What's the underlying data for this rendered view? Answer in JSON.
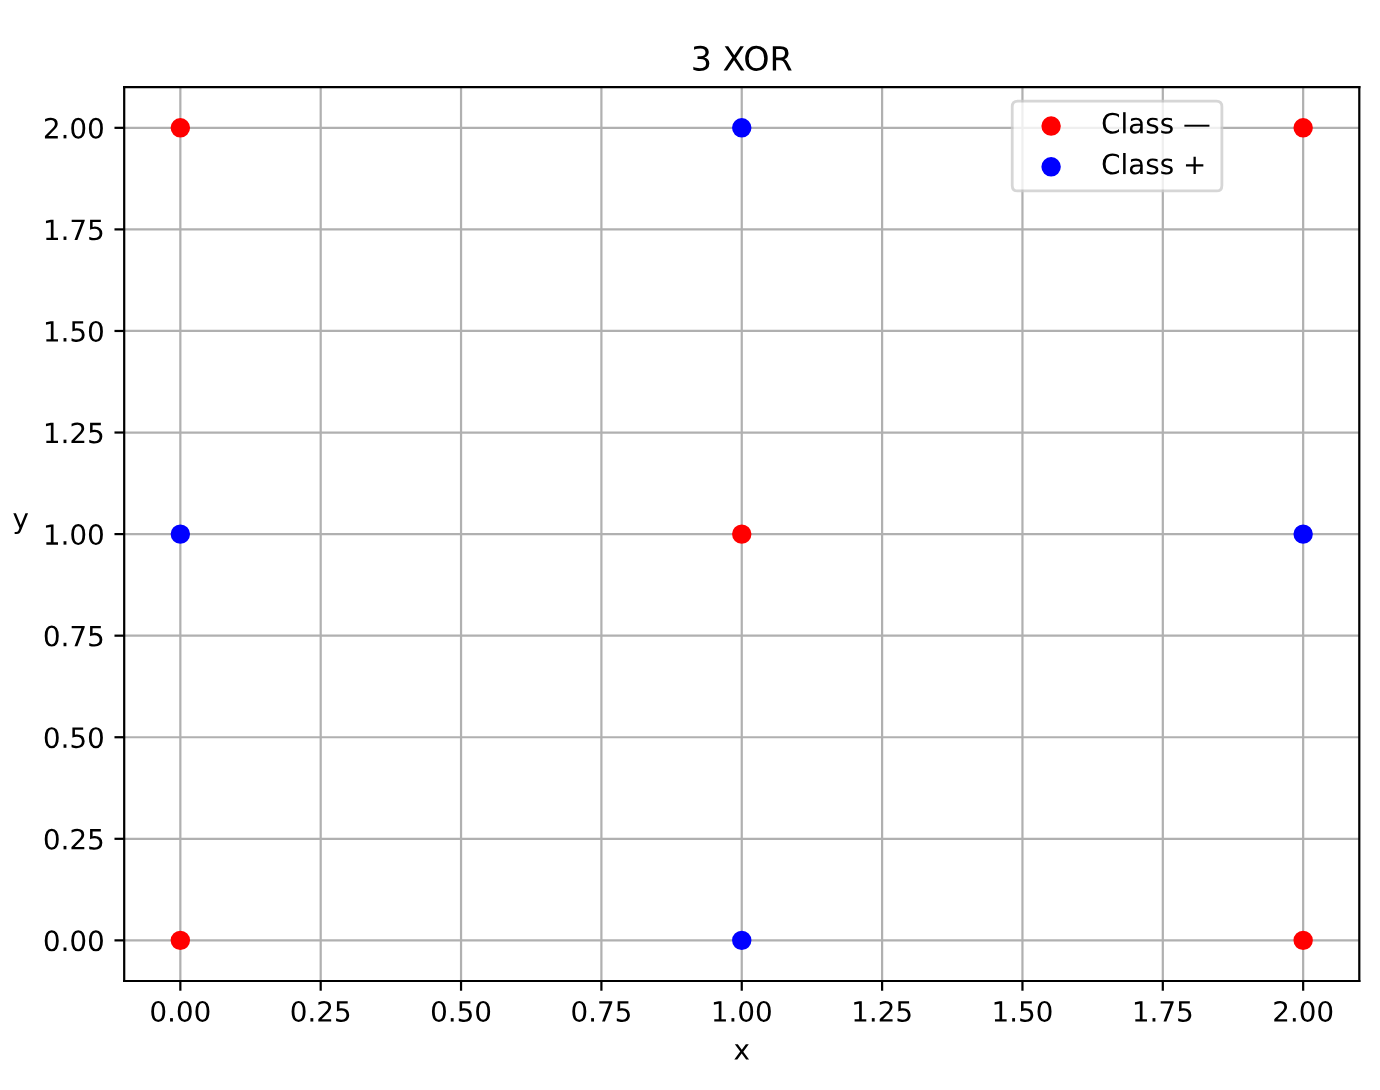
{
  "chart_data": {
    "type": "scatter",
    "title": "3 XOR",
    "xlabel": "x",
    "ylabel": "y",
    "series": [
      {
        "name": "Class —",
        "color": "#ff0000",
        "x": [
          0,
          0,
          1,
          2,
          2
        ],
        "values": [
          0,
          2,
          1,
          0,
          2
        ]
      },
      {
        "name": "Class +",
        "color": "#0000ff",
        "x": [
          0,
          1,
          1,
          2
        ],
        "values": [
          1,
          0,
          2,
          1
        ]
      }
    ],
    "xlim": [
      -0.1,
      2.1
    ],
    "ylim": [
      -0.1,
      2.1
    ],
    "xticks": [
      {
        "value": 0,
        "label": "0.00"
      },
      {
        "value": 0.25,
        "label": "0.25"
      },
      {
        "value": 0.5,
        "label": "0.50"
      },
      {
        "value": 0.75,
        "label": "0.75"
      },
      {
        "value": 1,
        "label": "1.00"
      },
      {
        "value": 1.25,
        "label": "1.25"
      },
      {
        "value": 1.5,
        "label": "1.50"
      },
      {
        "value": 1.75,
        "label": "1.75"
      },
      {
        "value": 2,
        "label": "2.00"
      }
    ],
    "yticks": [
      {
        "value": 0,
        "label": "0.00"
      },
      {
        "value": 0.25,
        "label": "0.25"
      },
      {
        "value": 0.5,
        "label": "0.50"
      },
      {
        "value": 0.75,
        "label": "0.75"
      },
      {
        "value": 1,
        "label": "1.00"
      },
      {
        "value": 1.25,
        "label": "1.25"
      },
      {
        "value": 1.5,
        "label": "1.50"
      },
      {
        "value": 1.75,
        "label": "1.75"
      },
      {
        "value": 2,
        "label": "2.00"
      }
    ],
    "grid": true,
    "legend": "top right",
    "marker": "circle"
  }
}
